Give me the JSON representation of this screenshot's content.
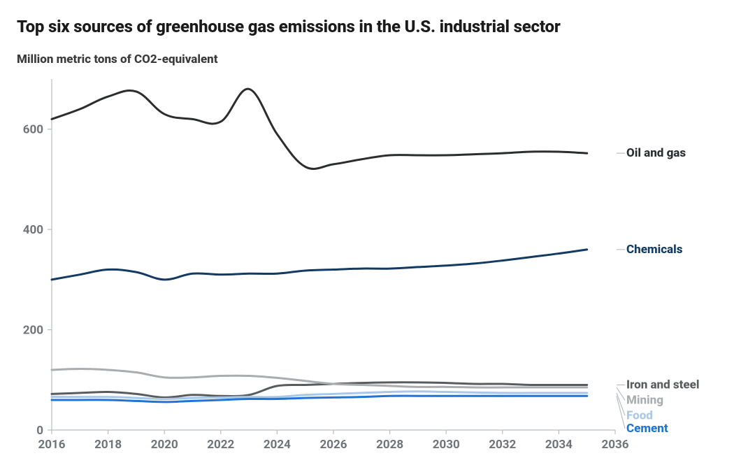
{
  "title": "Top six sources of greenhouse gas emissions in the U.S. industrial sector",
  "subtitle": "Million metric tons of CO2-equivalent",
  "chart": {
    "type": "line",
    "background_color": "#ffffff",
    "title_fontsize": 24,
    "subtitle_fontsize": 17,
    "axis_label_fontsize": 17,
    "axis_label_color": "#6f7478",
    "axis_line_color": "#b9bec1",
    "legend_fontsize": 17,
    "xlim": [
      2016,
      2036
    ],
    "ylim": [
      0,
      700
    ],
    "y_ticks": [
      0,
      200,
      400,
      600
    ],
    "x_ticks": [
      2016,
      2018,
      2020,
      2022,
      2024,
      2026,
      2028,
      2030,
      2032,
      2034,
      2036
    ],
    "line_width": 3,
    "series": [
      {
        "name": "Oil and gas",
        "color": "#2b2d2e",
        "label_color": "#2b2d2e",
        "data": [
          [
            2016,
            620
          ],
          [
            2017,
            640
          ],
          [
            2018,
            665
          ],
          [
            2019,
            675
          ],
          [
            2020,
            630
          ],
          [
            2021,
            620
          ],
          [
            2022,
            615
          ],
          [
            2023,
            680
          ],
          [
            2024,
            590
          ],
          [
            2025,
            525
          ],
          [
            2026,
            530
          ],
          [
            2027,
            540
          ],
          [
            2028,
            548
          ],
          [
            2029,
            548
          ],
          [
            2030,
            548
          ],
          [
            2031,
            550
          ],
          [
            2032,
            552
          ],
          [
            2033,
            555
          ],
          [
            2034,
            555
          ],
          [
            2035,
            552
          ]
        ]
      },
      {
        "name": "Chemicals",
        "color": "#123a63",
        "label_color": "#123a63",
        "data": [
          [
            2016,
            300
          ],
          [
            2017,
            310
          ],
          [
            2018,
            320
          ],
          [
            2019,
            315
          ],
          [
            2020,
            300
          ],
          [
            2021,
            312
          ],
          [
            2022,
            310
          ],
          [
            2023,
            312
          ],
          [
            2024,
            312
          ],
          [
            2025,
            318
          ],
          [
            2026,
            320
          ],
          [
            2027,
            322
          ],
          [
            2028,
            322
          ],
          [
            2029,
            325
          ],
          [
            2030,
            328
          ],
          [
            2031,
            332
          ],
          [
            2032,
            338
          ],
          [
            2033,
            345
          ],
          [
            2034,
            352
          ],
          [
            2035,
            360
          ]
        ]
      },
      {
        "name": "Iron and steel",
        "color": "#595c5e",
        "label_color": "#595c5e",
        "data": [
          [
            2016,
            72
          ],
          [
            2017,
            74
          ],
          [
            2018,
            76
          ],
          [
            2019,
            72
          ],
          [
            2020,
            65
          ],
          [
            2021,
            70
          ],
          [
            2022,
            68
          ],
          [
            2023,
            70
          ],
          [
            2024,
            88
          ],
          [
            2025,
            90
          ],
          [
            2026,
            92
          ],
          [
            2027,
            94
          ],
          [
            2028,
            95
          ],
          [
            2029,
            95
          ],
          [
            2030,
            94
          ],
          [
            2031,
            92
          ],
          [
            2032,
            92
          ],
          [
            2033,
            90
          ],
          [
            2034,
            90
          ],
          [
            2035,
            90
          ]
        ]
      },
      {
        "name": "Mining",
        "color": "#a9adb0",
        "label_color": "#a9adb0",
        "data": [
          [
            2016,
            120
          ],
          [
            2017,
            122
          ],
          [
            2018,
            120
          ],
          [
            2019,
            115
          ],
          [
            2020,
            105
          ],
          [
            2021,
            105
          ],
          [
            2022,
            108
          ],
          [
            2023,
            108
          ],
          [
            2024,
            104
          ],
          [
            2025,
            98
          ],
          [
            2026,
            92
          ],
          [
            2027,
            90
          ],
          [
            2028,
            88
          ],
          [
            2029,
            86
          ],
          [
            2030,
            86
          ],
          [
            2031,
            85
          ],
          [
            2032,
            85
          ],
          [
            2033,
            85
          ],
          [
            2034,
            85
          ],
          [
            2035,
            85
          ]
        ]
      },
      {
        "name": "Food",
        "color": "#a9c7e8",
        "label_color": "#a9c7e8",
        "data": [
          [
            2016,
            66
          ],
          [
            2017,
            66
          ],
          [
            2018,
            66
          ],
          [
            2019,
            64
          ],
          [
            2020,
            62
          ],
          [
            2021,
            64
          ],
          [
            2022,
            65
          ],
          [
            2023,
            66
          ],
          [
            2024,
            66
          ],
          [
            2025,
            70
          ],
          [
            2026,
            72
          ],
          [
            2027,
            74
          ],
          [
            2028,
            76
          ],
          [
            2029,
            77
          ],
          [
            2030,
            76
          ],
          [
            2031,
            75
          ],
          [
            2032,
            74
          ],
          [
            2033,
            74
          ],
          [
            2034,
            74
          ],
          [
            2035,
            74
          ]
        ]
      },
      {
        "name": "Cement",
        "color": "#1f74d4",
        "label_color": "#1f74d4",
        "data": [
          [
            2016,
            60
          ],
          [
            2017,
            60
          ],
          [
            2018,
            60
          ],
          [
            2019,
            58
          ],
          [
            2020,
            56
          ],
          [
            2021,
            58
          ],
          [
            2022,
            60
          ],
          [
            2023,
            62
          ],
          [
            2024,
            62
          ],
          [
            2025,
            64
          ],
          [
            2026,
            65
          ],
          [
            2027,
            66
          ],
          [
            2028,
            68
          ],
          [
            2029,
            68
          ],
          [
            2030,
            68
          ],
          [
            2031,
            68
          ],
          [
            2032,
            68
          ],
          [
            2033,
            68
          ],
          [
            2034,
            68
          ],
          [
            2035,
            68
          ]
        ]
      }
    ],
    "legend_order": [
      "Oil and gas",
      "Chemicals",
      "Iron and steel",
      "Mining",
      "Food",
      "Cement"
    ]
  }
}
